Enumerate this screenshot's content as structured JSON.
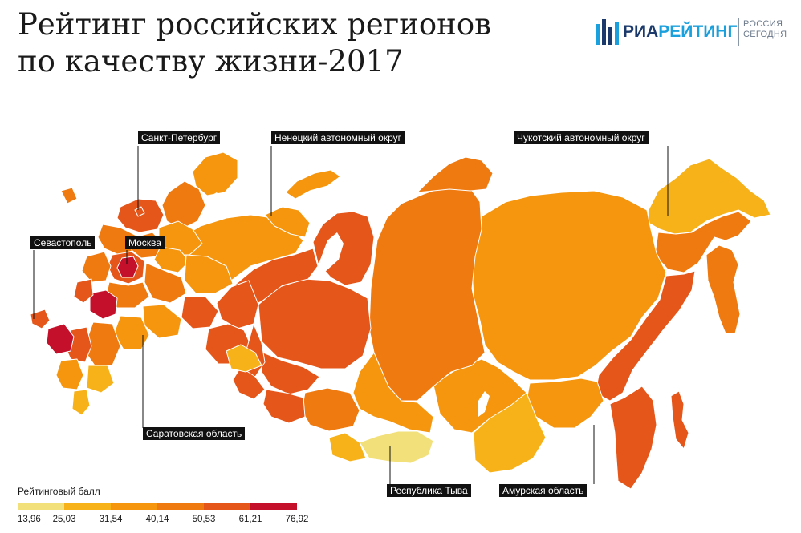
{
  "title": {
    "line1": "Рейтинг российских регионов",
    "line2": "по качеству жизни-2017"
  },
  "logo": {
    "brand_part1": "РИА",
    "brand_part2": "РЕЙТИНГ",
    "sub_line1": "РОССИЯ",
    "sub_line2": "СЕГОДНЯ",
    "colors": {
      "dark": "#1b3a6b",
      "light": "#1aa0dc"
    }
  },
  "callouts": {
    "spb": "Санкт-Петербург",
    "nenets": "Ненецкий автономный округ",
    "chukotka": "Чукотский автономный округ",
    "sevastopol": "Севастополь",
    "moscow": "Москва",
    "saratov": "Саратовская область",
    "tyva": "Республика Тыва",
    "amur": "Амурская область"
  },
  "legend": {
    "title": "Рейтинговый балл",
    "ticks": [
      "13,96",
      "25,03",
      "31,54",
      "40,14",
      "50,53",
      "61,21",
      "76,92"
    ],
    "colors": [
      "#f2e07a",
      "#f7b21a",
      "#f5960e",
      "#ef7a10",
      "#e5561a",
      "#c4102a"
    ]
  }
}
